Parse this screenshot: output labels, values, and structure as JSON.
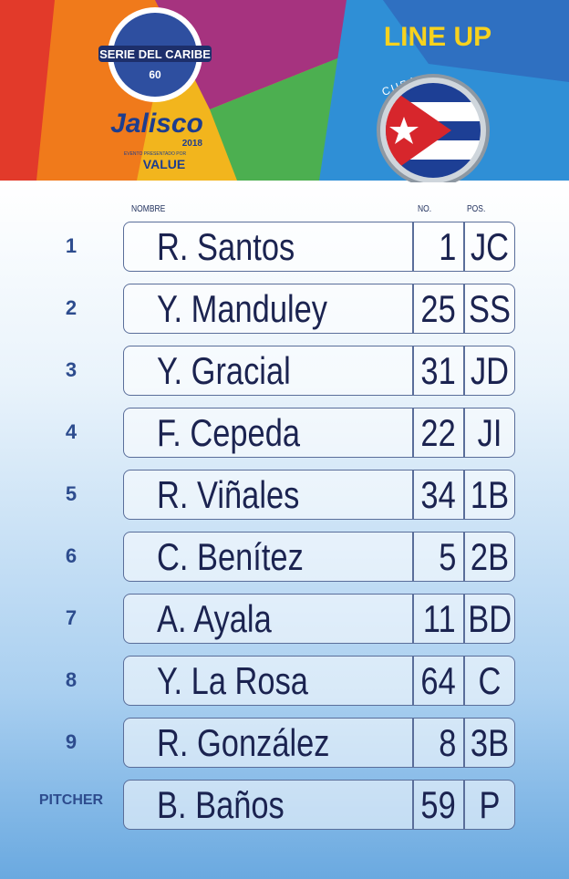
{
  "header": {
    "event": "SERIE DEL CARIBE",
    "edition": "60",
    "host": "Jalisco",
    "year": "2018",
    "sponsor_note": "EVENTO PRESENTADO POR",
    "sponsor": "VALUE",
    "title": "LINE UP",
    "team": "CUBA"
  },
  "table": {
    "columns": [
      "NOMBRE",
      "NO.",
      "POS."
    ],
    "rows": [
      [
        "1",
        "R. Santos",
        "1",
        "JC"
      ],
      [
        "2",
        "Y. Manduley",
        "25",
        "SS"
      ],
      [
        "3",
        "Y. Gracial",
        "31",
        "JD"
      ],
      [
        "4",
        "F. Cepeda",
        "22",
        "JI"
      ],
      [
        "5",
        "R. Viñales",
        "34",
        "1B"
      ],
      [
        "6",
        "C. Benítez",
        "5",
        "2B"
      ],
      [
        "7",
        "A. Ayala",
        "11",
        "BD"
      ],
      [
        "8",
        "Y. La Rosa",
        "64",
        "C"
      ],
      [
        "9",
        "R. González",
        "8",
        "3B"
      ],
      [
        "PITCHER",
        "B. Baños",
        "59",
        "P"
      ]
    ]
  }
}
